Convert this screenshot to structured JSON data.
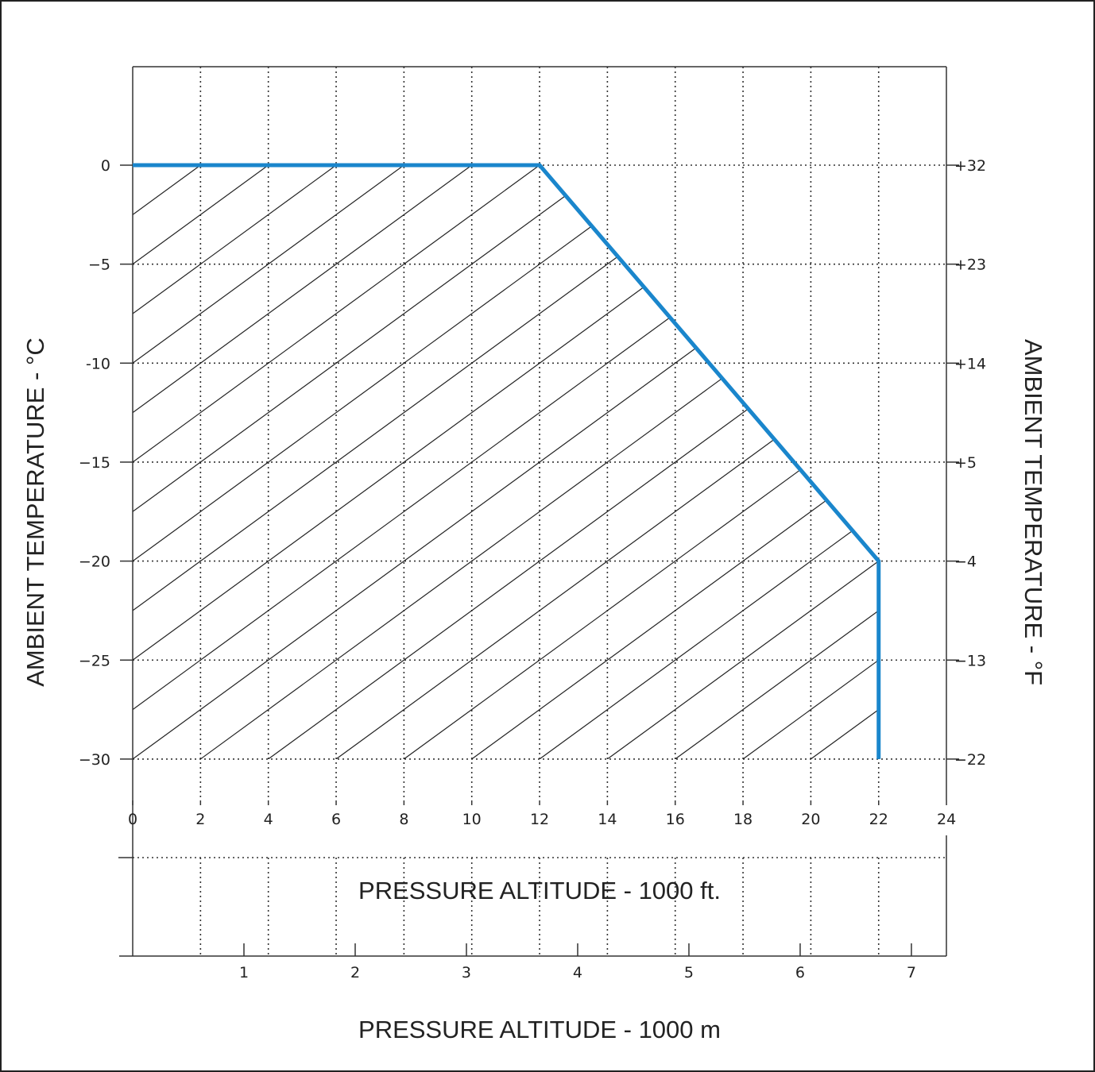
{
  "chart_data": {
    "type": "area",
    "title": "",
    "x_ticks_ft": [
      "0",
      "2",
      "4",
      "6",
      "8",
      "10",
      "12",
      "14",
      "16",
      "18",
      "20",
      "22",
      "24"
    ],
    "x_ticks_m": [
      "1",
      "2",
      "3",
      "4",
      "5",
      "6",
      "7"
    ],
    "y_ticks_c": [
      "0",
      "−5",
      "-10",
      "−15",
      "−20",
      "−25",
      "−30"
    ],
    "y_ticks_f": [
      "+32",
      "+23",
      "+14",
      "+5",
      "−4",
      "−13",
      "−22"
    ],
    "xlabel_ft": "PRESSURE ALTITUDE - 1000 ft.",
    "xlabel_m": "PRESSURE ALTITUDE - 1000 m",
    "ylabel_left": "AMBIENT TEMPERATURE - °C",
    "ylabel_right": "AMBIENT TEMPERATURE - °F",
    "xlim": [
      0,
      24
    ],
    "ylim": [
      -32,
      5
    ],
    "grid": true,
    "hatched_region": true,
    "colors": {
      "boundary": "#1a86cc",
      "grid": "#333333",
      "frame": "#333333"
    },
    "series": [
      {
        "x": [
          0,
          12,
          22,
          22
        ],
        "y": [
          0,
          0,
          -20,
          -30
        ]
      }
    ]
  }
}
